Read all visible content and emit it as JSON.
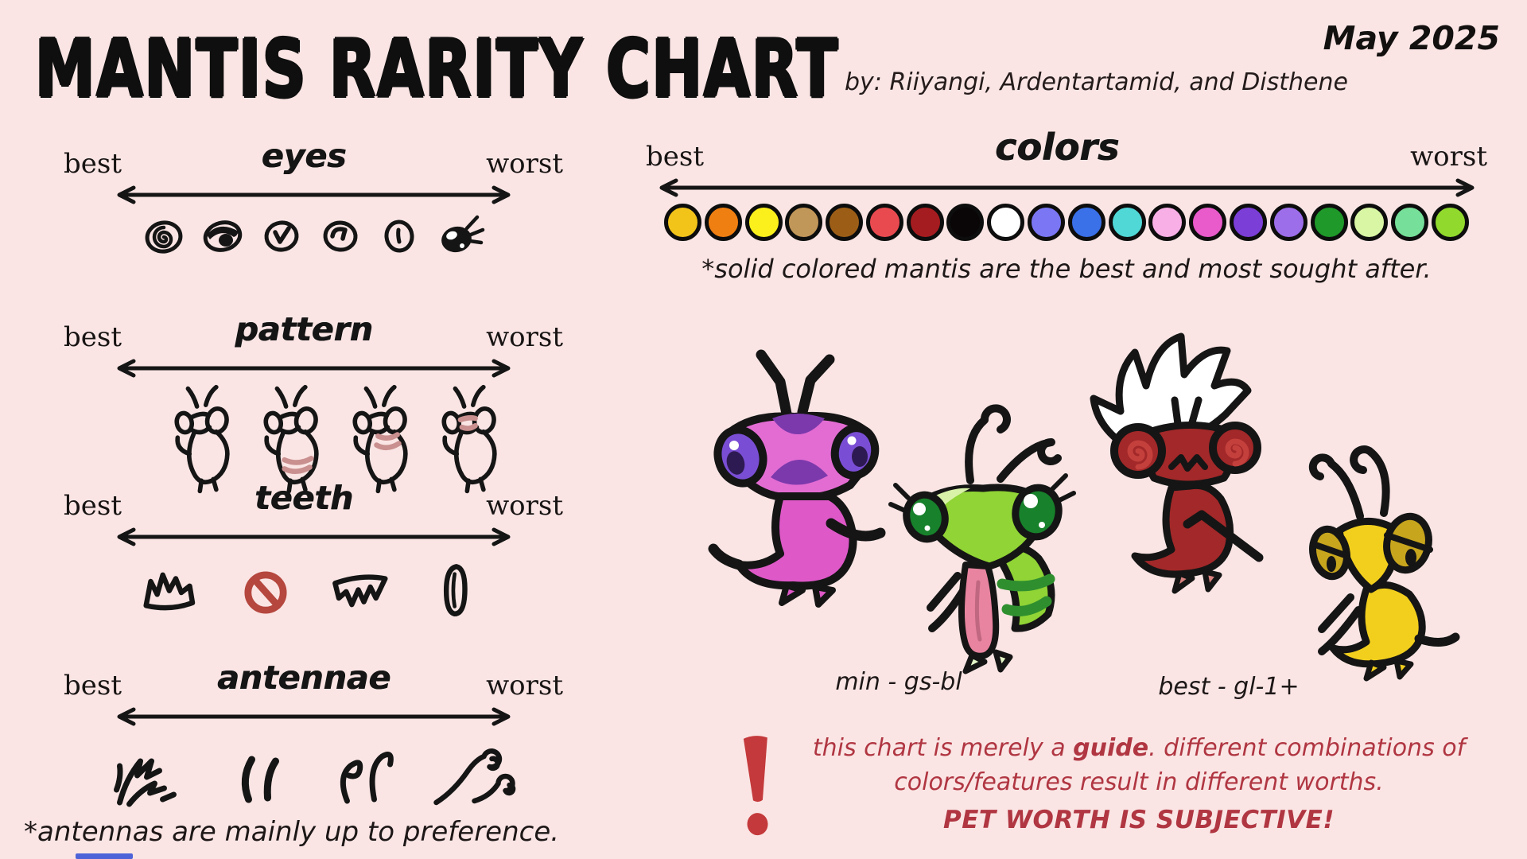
{
  "page": {
    "background": "#FAE5E4",
    "ink": "#151515"
  },
  "header": {
    "title": "MANTIS RARITY CHART",
    "byline": "by: Riiyangi, Ardentartamid, and Disthene",
    "date": "May 2025"
  },
  "sections": [
    {
      "id": "eyes",
      "title": "eyes",
      "best": "best",
      "worst": "worst",
      "items": [
        "spiral-eye",
        "lidded-eye",
        "check-pupil-eye",
        "curved-pupil-eye",
        "slit-pupil-eye",
        "lashed-eye"
      ]
    },
    {
      "id": "pattern",
      "title": "pattern",
      "best": "best",
      "worst": "worst",
      "items": [
        "solid-no-pattern",
        "belly-stripes",
        "neck-stripes",
        "face-stripes"
      ],
      "stripe_color": "#C9908F"
    },
    {
      "id": "teeth",
      "title": "teeth",
      "best": "best",
      "worst": "worst",
      "items": [
        "jagged-teeth",
        "no-teeth",
        "zigzag-teeth",
        "single-fang"
      ],
      "no_symbol_color": "#B5473F"
    },
    {
      "id": "antennae",
      "title": "antennae",
      "best": "best",
      "worst": "worst",
      "items": [
        "spiky-antennae",
        "plain-curved-antennae",
        "hooked-antennae",
        "spiral-antennae"
      ]
    }
  ],
  "antennae_note": "*antennas are mainly up to preference.",
  "colors": {
    "title": "colors",
    "best": "best",
    "worst": "worst",
    "note": "*solid colored mantis are the best and most sought after.",
    "swatches": [
      {
        "name": "gold",
        "hex": "#F2C41A"
      },
      {
        "name": "orange",
        "hex": "#F07F12"
      },
      {
        "name": "yellow",
        "hex": "#FBF01B"
      },
      {
        "name": "tan",
        "hex": "#C19659"
      },
      {
        "name": "brown",
        "hex": "#9C5E17"
      },
      {
        "name": "red",
        "hex": "#E94A50"
      },
      {
        "name": "dark-red",
        "hex": "#A51C20"
      },
      {
        "name": "black",
        "hex": "#0A0608"
      },
      {
        "name": "white",
        "hex": "#FFFFFF"
      },
      {
        "name": "periwinkle",
        "hex": "#7B76F3"
      },
      {
        "name": "blue",
        "hex": "#3A70E8"
      },
      {
        "name": "cyan",
        "hex": "#50D8D6"
      },
      {
        "name": "pink",
        "hex": "#F8AFE5"
      },
      {
        "name": "magenta",
        "hex": "#E95ACA"
      },
      {
        "name": "purple",
        "hex": "#7B3ED7"
      },
      {
        "name": "lavender",
        "hex": "#9D6EEA"
      },
      {
        "name": "green",
        "hex": "#1F992A"
      },
      {
        "name": "pale-green",
        "hex": "#D8F6A4"
      },
      {
        "name": "mint",
        "hex": "#76DF99"
      },
      {
        "name": "lime",
        "hex": "#92D92D"
      }
    ]
  },
  "mantises": [
    {
      "name": "purple-patterned-mantis",
      "body": "#DE58C8",
      "accent": "#7C39AC",
      "eyes": "#7A4ED4"
    },
    {
      "name": "green-striped-mantis",
      "body": "#90D435",
      "accent": "#2F8F2F",
      "tongue": "#E8849F"
    },
    {
      "name": "red-crested-mantis",
      "body": "#A22829",
      "accent": "#C4403C",
      "crest": "#FFFFFF"
    },
    {
      "name": "yellow-mantis",
      "body": "#F2CF1D",
      "accent": "#C7A51D"
    }
  ],
  "examples": [
    {
      "label": "min - gs-bl"
    },
    {
      "label": "best - gl-1+"
    }
  ],
  "disclaimer": {
    "color": "#B03642",
    "icon_color": "#C4393B",
    "line1_pre": "this chart is merely a ",
    "line1_bold": "guide",
    "line1_post": ". different combinations of",
    "line2": "colors/features result in different worths.",
    "line3": "PET WORTH IS SUBJECTIVE!"
  },
  "chart_data": {
    "type": "table",
    "title": "MANTIS RARITY CHART",
    "order": "best to worst (left to right)",
    "categories": [
      "eyes",
      "pattern",
      "teeth",
      "antennae",
      "colors"
    ],
    "rankings": {
      "eyes": [
        "spiral eye",
        "lidded eye",
        "check-pupil eye",
        "curved-pupil eye",
        "slit-pupil eye",
        "lashed eye"
      ],
      "pattern": [
        "solid / no pattern",
        "belly stripes",
        "neck stripes",
        "face stripes"
      ],
      "teeth": [
        "jagged teeth",
        "no teeth",
        "zigzag teeth",
        "single fang"
      ],
      "antennae": [
        "spiky",
        "plain curved",
        "hooked",
        "spiral curled"
      ],
      "colors": [
        "gold",
        "orange",
        "yellow",
        "tan",
        "brown",
        "red",
        "dark red",
        "black",
        "white",
        "periwinkle",
        "blue",
        "cyan",
        "pink",
        "magenta",
        "purple",
        "lavender",
        "green",
        "pale green",
        "mint",
        "lime"
      ]
    },
    "notes": [
      "*antennas are mainly up to preference.",
      "*solid colored mantis are the best and most sought after."
    ]
  }
}
